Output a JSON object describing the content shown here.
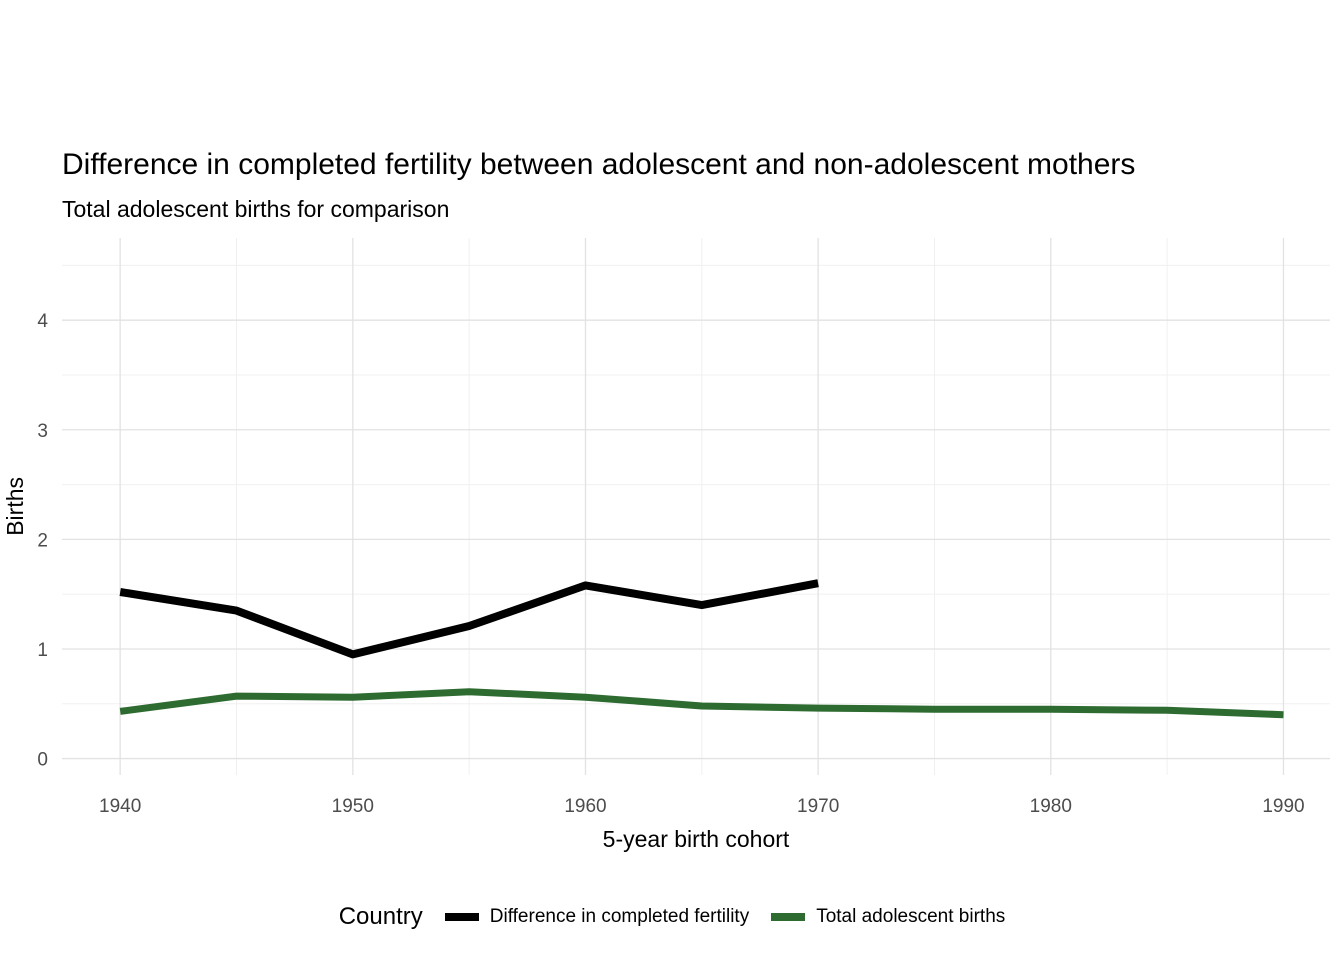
{
  "chart_data": {
    "type": "line",
    "title": "Difference in completed fertility between adolescent and non-adolescent mothers",
    "subtitle": "Total adolescent births for comparison",
    "xlabel": "5-year birth cohort",
    "ylabel": "Births",
    "legend_title": "Country",
    "legend_position": "bottom",
    "grid": true,
    "grid_major_color": "#e2e2e2",
    "grid_minor_color": "#f0f0f0",
    "background_color": "#ffffff",
    "axis_text_color": "#4d4d4d",
    "xlim": [
      1937.5,
      1992
    ],
    "ylim": [
      -0.15,
      4.75
    ],
    "x_ticks": [
      1940,
      1950,
      1960,
      1970,
      1980,
      1990
    ],
    "y_ticks": [
      0,
      1,
      2,
      3,
      4
    ],
    "series": [
      {
        "name": "Difference in completed fertility",
        "color": "#000000",
        "x": [
          1940,
          1945,
          1950,
          1955,
          1960,
          1965,
          1970
        ],
        "values": [
          1.52,
          1.35,
          0.95,
          1.21,
          1.58,
          1.4,
          1.6
        ]
      },
      {
        "name": "Total adolescent births",
        "color": "#2e6b31",
        "x": [
          1940,
          1945,
          1950,
          1955,
          1960,
          1965,
          1970,
          1975,
          1980,
          1985,
          1990
        ],
        "values": [
          0.43,
          0.57,
          0.56,
          0.61,
          0.56,
          0.48,
          0.46,
          0.45,
          0.45,
          0.44,
          0.4
        ]
      }
    ]
  }
}
